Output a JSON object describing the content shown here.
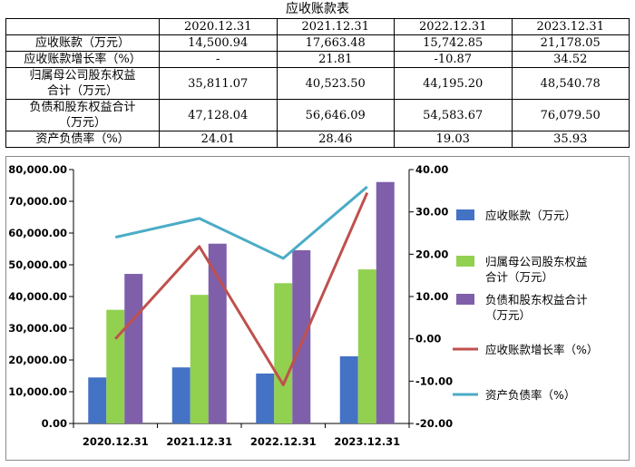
{
  "table": {
    "title": "应收账款表",
    "columns": [
      "2020.12.31",
      "2021.12.31",
      "2022.12.31",
      "2023.12.31"
    ],
    "rows": [
      {
        "label": "应收账款（万元）",
        "values": [
          "14,500.94",
          "17,663.48",
          "15,742.85",
          "21,178.05"
        ]
      },
      {
        "label": "应收账款增长率（%）",
        "values": [
          "-",
          "21.81",
          "-10.87",
          "34.52"
        ]
      },
      {
        "label_lines": [
          "归属母公司股东权益",
          "合计（万元）"
        ],
        "values": [
          "35,811.07",
          "40,523.50",
          "44,195.20",
          "48,540.78"
        ]
      },
      {
        "label_lines": [
          "负债和股东权益合计",
          "（万元）"
        ],
        "values": [
          "47,128.04",
          "56,646.09",
          "54,583.67",
          "76,079.50"
        ]
      },
      {
        "label": "资产负债率（%）",
        "values": [
          "24.01",
          "28.46",
          "19.03",
          "35.93"
        ]
      }
    ]
  },
  "chart_data": {
    "type": "bar",
    "categories": [
      "2020.12.31",
      "2021.12.31",
      "2022.12.31",
      "2023.12.31"
    ],
    "ylim": [
      0,
      80000
    ],
    "y2lim": [
      -20,
      40
    ],
    "y_ticks": [
      "0.00",
      "10,000.00",
      "20,000.00",
      "30,000.00",
      "40,000.00",
      "50,000.00",
      "60,000.00",
      "70,000.00",
      "80,000.00"
    ],
    "y2_ticks": [
      "-20.00",
      "-10.00",
      "0.00",
      "10.00",
      "20.00",
      "30.00",
      "40.00"
    ],
    "grid": false,
    "legend_position": "right",
    "series": [
      {
        "name": "应收账款（万元）",
        "kind": "bar",
        "axis": "left",
        "color": "#4472C4",
        "values": [
          14500.94,
          17663.48,
          15742.85,
          21178.05
        ]
      },
      {
        "name": "归属母公司股东权益合计（万元）",
        "name_lines": [
          "归属母公司股东权益",
          "合计（万元）"
        ],
        "kind": "bar",
        "axis": "left",
        "color": "#92D050",
        "values": [
          35811.07,
          40523.5,
          44195.2,
          48540.78
        ]
      },
      {
        "name": "负债和股东权益合计（万元）",
        "name_lines": [
          "负债和股东权益合计",
          "（万元）"
        ],
        "kind": "bar",
        "axis": "left",
        "color": "#7F5FAA",
        "values": [
          47128.04,
          56646.09,
          54583.67,
          76079.5
        ]
      },
      {
        "name": "应收账款增长率（%）",
        "kind": "line",
        "axis": "right",
        "color": "#C0504D",
        "values": [
          0,
          21.81,
          -10.87,
          34.52
        ]
      },
      {
        "name": "资产负债率（%）",
        "kind": "line",
        "axis": "right",
        "color": "#4BACC6",
        "values": [
          24.01,
          28.46,
          19.03,
          35.93
        ]
      }
    ]
  }
}
